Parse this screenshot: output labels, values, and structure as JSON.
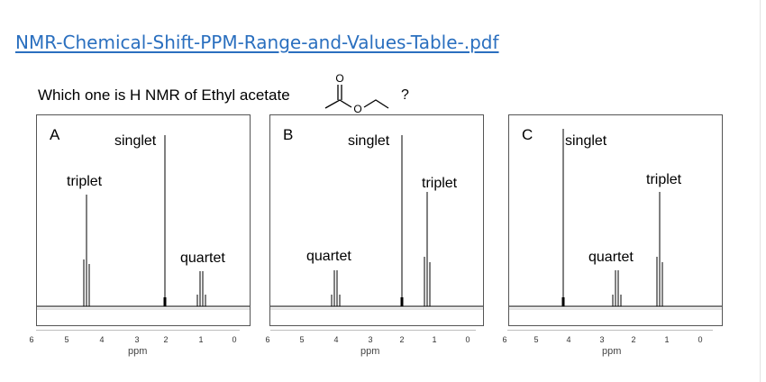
{
  "link": {
    "text": "NMR-Chemical-Shift-PPM-Range-and-Values-Table-.pdf"
  },
  "question": {
    "text": "Which one is H NMR of Ethyl acetate",
    "mark": "?"
  },
  "molecule": {
    "atom_label": "O"
  },
  "axis": {
    "ticks": [
      "6",
      "5",
      "4",
      "3",
      "2",
      "1",
      "0"
    ],
    "unit": "ppm"
  },
  "panels": [
    {
      "letter": "A",
      "singlet": "singlet",
      "triplet": "triplet",
      "quartet": "quartet"
    },
    {
      "letter": "B",
      "singlet": "singlet",
      "triplet": "triplet",
      "quartet": "quartet"
    },
    {
      "letter": "C",
      "singlet": "singlet",
      "triplet": "triplet",
      "quartet": "quartet"
    }
  ],
  "colors": {
    "link": "#2a6fbf",
    "text": "#000000",
    "frame": "#555555"
  }
}
